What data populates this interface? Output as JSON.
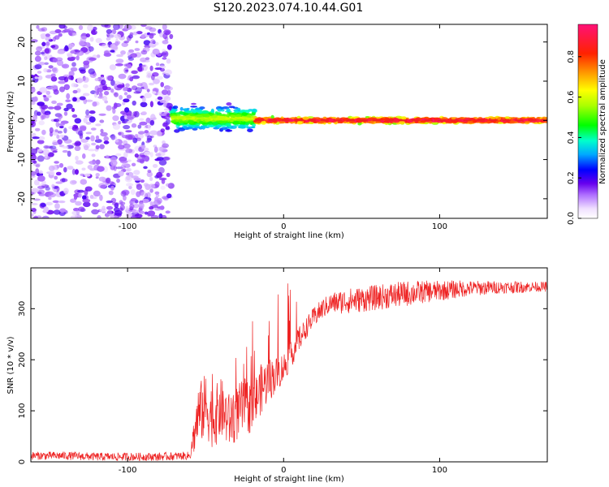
{
  "title": "S120.2023.074.10.44.G01",
  "chart_data": [
    {
      "type": "heatmap",
      "xlabel": "Height of straight line (km)",
      "ylabel": "Frequency (Hz)",
      "xlim": [
        -162,
        169
      ],
      "ylim": [
        -25,
        24.5
      ],
      "x_ticks": [
        -100,
        0,
        100
      ],
      "y_ticks": [
        -20,
        -10,
        0,
        10,
        20
      ],
      "grid": false,
      "colorbar": {
        "label": "Normalized spectral amplitude",
        "range": [
          0,
          0.96
        ],
        "ticks": [
          0.0,
          0.2,
          0.4,
          0.6,
          0.8
        ]
      },
      "regions": [
        {
          "x_range": [
            -162,
            -72
          ],
          "frequency_range": [
            -25,
            24.5
          ],
          "amplitude": [
            0.05,
            0.2
          ]
        },
        {
          "x_range": [
            -72,
            -18
          ],
          "frequency_center": 0.5,
          "frequency_spread": 4.5,
          "amplitude": [
            0.2,
            0.6
          ]
        },
        {
          "x_range": [
            -18,
            169
          ],
          "frequency_center": 0,
          "frequency_spread": 1.5,
          "amplitude": [
            0.6,
            0.96
          ]
        }
      ]
    },
    {
      "type": "line",
      "xlabel": "Height of straight line (km)",
      "ylabel": "SNR (10 * v/v)",
      "xlim": [
        -162,
        169
      ],
      "ylim": [
        0,
        380
      ],
      "x_ticks": [
        -100,
        0,
        100
      ],
      "y_ticks": [
        0,
        100,
        200,
        300
      ],
      "grid": false,
      "series": [
        {
          "color": "#ee2222",
          "x": [
            -162,
            -140,
            -120,
            -100,
            -80,
            -60,
            -55,
            -50,
            -45,
            -40,
            -35,
            -30,
            -25,
            -20,
            -15,
            -10,
            -5,
            0,
            5,
            10,
            15,
            20,
            25,
            30,
            40,
            50,
            60,
            70,
            80,
            90,
            100,
            110,
            120,
            130,
            140,
            150,
            160,
            169
          ],
          "values": [
            12,
            12,
            10,
            10,
            10,
            12,
            90,
            110,
            85,
            105,
            80,
            95,
            110,
            105,
            140,
            160,
            170,
            185,
            210,
            240,
            265,
            285,
            300,
            310,
            315,
            318,
            322,
            326,
            330,
            333,
            335,
            338,
            340,
            341,
            342,
            342,
            343,
            343
          ],
          "noise_amplitude": [
            8,
            8,
            8,
            8,
            8,
            8,
            60,
            65,
            60,
            60,
            55,
            55,
            55,
            50,
            50,
            45,
            35,
            30,
            25,
            25,
            20,
            20,
            20,
            20,
            25,
            25,
            25,
            25,
            25,
            22,
            20,
            18,
            15,
            14,
            12,
            12,
            10,
            10
          ]
        }
      ]
    }
  ]
}
